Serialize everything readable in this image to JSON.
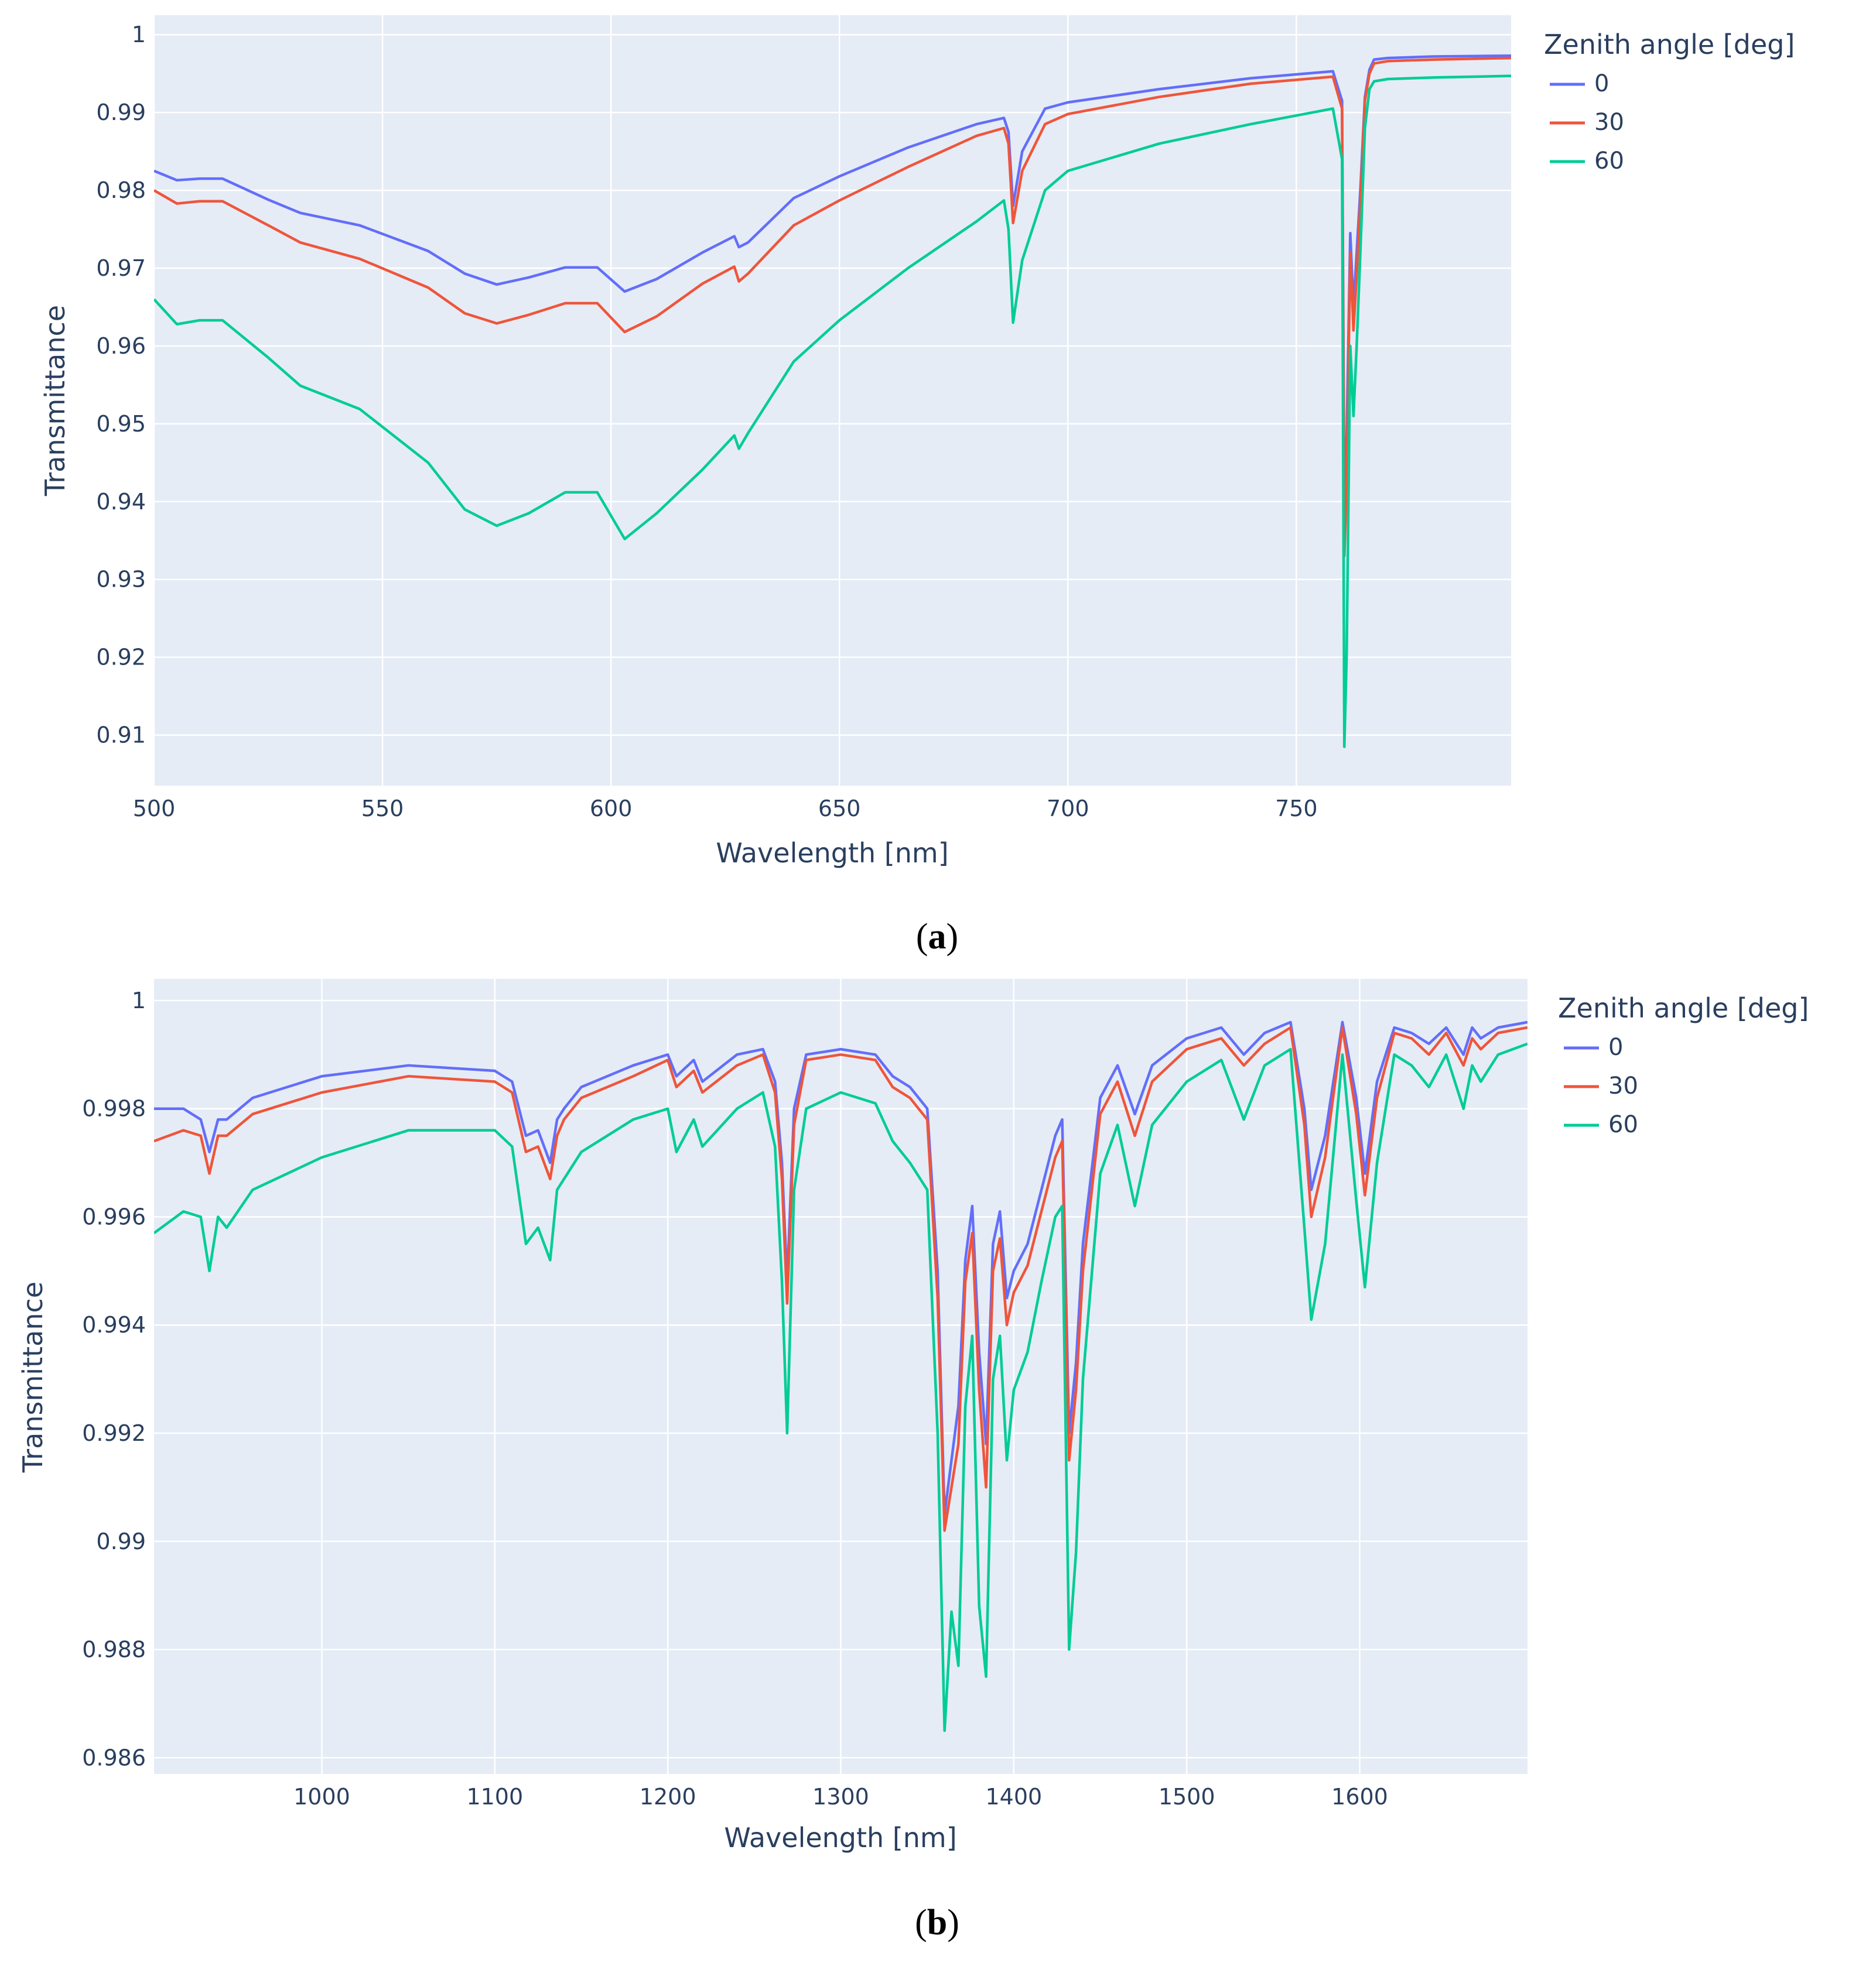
{
  "chart_data": [
    {
      "type": "line",
      "panel_label": "a",
      "xlabel": "Wavelength [nm]",
      "ylabel": "Transmittance",
      "xlim": [
        500,
        797
      ],
      "ylim": [
        0.9035,
        1.0025
      ],
      "x_ticks": [
        500,
        550,
        600,
        650,
        700,
        750
      ],
      "y_ticks": [
        0.91,
        0.92,
        0.93,
        0.94,
        0.95,
        0.96,
        0.97,
        0.98,
        0.99,
        1
      ],
      "y_tick_labels": [
        "0.91",
        "0.92",
        "0.93",
        "0.94",
        "0.95",
        "0.96",
        "0.97",
        "0.98",
        "0.99",
        "1"
      ],
      "grid": true,
      "legend": {
        "title": "Zenith angle [deg]",
        "placement": "top-right, outside"
      },
      "series": [
        {
          "name": "0",
          "color": "#636efa",
          "x": [
            500,
            505,
            510,
            515,
            525,
            532,
            545,
            560,
            568,
            575,
            582,
            590,
            597,
            603,
            610,
            620,
            627,
            628,
            630,
            640,
            650,
            665,
            680,
            686,
            687,
            688,
            690,
            695,
            700,
            720,
            740,
            758,
            760,
            760.5,
            761,
            761.8,
            762.5,
            763.2,
            764,
            765,
            766,
            767,
            770,
            780,
            797
          ],
          "y": [
            0.9825,
            0.9813,
            0.9815,
            0.9815,
            0.9788,
            0.9771,
            0.9755,
            0.9722,
            0.9693,
            0.9679,
            0.9688,
            0.9701,
            0.9701,
            0.967,
            0.9686,
            0.972,
            0.9741,
            0.9727,
            0.9733,
            0.979,
            0.9818,
            0.9855,
            0.9885,
            0.9893,
            0.9875,
            0.978,
            0.985,
            0.9905,
            0.9913,
            0.993,
            0.9944,
            0.9953,
            0.9915,
            0.94,
            0.948,
            0.9745,
            0.965,
            0.972,
            0.98,
            0.992,
            0.9955,
            0.9968,
            0.997,
            0.9972,
            0.9973
          ]
        },
        {
          "name": "30",
          "color": "#ef553b",
          "x": [
            500,
            505,
            510,
            515,
            525,
            532,
            545,
            560,
            568,
            575,
            582,
            590,
            597,
            603,
            610,
            620,
            627,
            628,
            630,
            640,
            650,
            665,
            680,
            686,
            687,
            688,
            690,
            695,
            700,
            720,
            740,
            758,
            760,
            760.5,
            761,
            761.8,
            762.5,
            763.2,
            764,
            765,
            766,
            767,
            770,
            780,
            797
          ],
          "y": [
            0.98,
            0.9783,
            0.9786,
            0.9786,
            0.9755,
            0.9733,
            0.9712,
            0.9675,
            0.9642,
            0.9629,
            0.964,
            0.9655,
            0.9655,
            0.9618,
            0.9638,
            0.968,
            0.9702,
            0.9683,
            0.9693,
            0.9755,
            0.9787,
            0.983,
            0.987,
            0.988,
            0.986,
            0.9758,
            0.9825,
            0.9885,
            0.9898,
            0.992,
            0.9937,
            0.9946,
            0.9905,
            0.933,
            0.942,
            0.972,
            0.962,
            0.969,
            0.9785,
            0.9915,
            0.995,
            0.9963,
            0.9966,
            0.9968,
            0.997
          ]
        },
        {
          "name": "60",
          "color": "#00cc96",
          "x": [
            500,
            505,
            510,
            515,
            525,
            532,
            545,
            560,
            568,
            575,
            582,
            590,
            597,
            603,
            610,
            620,
            627,
            628,
            630,
            640,
            650,
            665,
            680,
            686,
            687,
            688,
            690,
            695,
            700,
            720,
            740,
            758,
            760,
            760.5,
            761,
            761.8,
            762.5,
            763.2,
            764,
            765,
            766,
            767,
            770,
            780,
            797
          ],
          "y": [
            0.966,
            0.9628,
            0.9633,
            0.9633,
            0.9585,
            0.9549,
            0.9519,
            0.945,
            0.939,
            0.9369,
            0.9385,
            0.9412,
            0.9412,
            0.9352,
            0.9385,
            0.9441,
            0.9485,
            0.9468,
            0.9488,
            0.958,
            0.9633,
            0.97,
            0.976,
            0.9787,
            0.975,
            0.963,
            0.971,
            0.98,
            0.9825,
            0.986,
            0.9885,
            0.9905,
            0.984,
            0.9085,
            0.92,
            0.96,
            0.951,
            0.96,
            0.972,
            0.988,
            0.993,
            0.994,
            0.9943,
            0.9945,
            0.9947
          ]
        }
      ]
    },
    {
      "type": "line",
      "panel_label": "b",
      "xlabel": "Wavelength [nm]",
      "ylabel": "Transmittance",
      "xlim": [
        903,
        1697
      ],
      "ylim": [
        0.9857,
        1.0004
      ],
      "x_ticks": [
        1000,
        1100,
        1200,
        1300,
        1400,
        1500,
        1600
      ],
      "y_ticks": [
        0.986,
        0.988,
        0.99,
        0.992,
        0.994,
        0.996,
        0.998,
        1
      ],
      "y_tick_labels": [
        "0.986",
        "0.988",
        "0.99",
        "0.992",
        "0.994",
        "0.996",
        "0.998",
        "1"
      ],
      "grid": true,
      "legend": {
        "title": "Zenith angle [deg]",
        "placement": "top-right, outside"
      },
      "series": [
        {
          "name": "0",
          "color": "#636efa",
          "x": [
            903,
            920,
            930,
            935,
            940,
            945,
            960,
            1000,
            1050,
            1100,
            1110,
            1118,
            1125,
            1132,
            1136,
            1140,
            1150,
            1180,
            1200,
            1205,
            1215,
            1220,
            1240,
            1255,
            1262,
            1266,
            1269,
            1273,
            1280,
            1300,
            1320,
            1330,
            1340,
            1350,
            1356,
            1360,
            1364,
            1368,
            1372,
            1376,
            1380,
            1384,
            1388,
            1392,
            1396,
            1400,
            1408,
            1416,
            1424,
            1428,
            1432,
            1436,
            1440,
            1450,
            1460,
            1470,
            1480,
            1500,
            1520,
            1533,
            1545,
            1560,
            1568,
            1572,
            1580,
            1590,
            1598,
            1603,
            1610,
            1620,
            1630,
            1640,
            1650,
            1660,
            1665,
            1670,
            1680,
            1697
          ],
          "y": [
            0.998,
            0.998,
            0.9978,
            0.9972,
            0.9978,
            0.9978,
            0.9982,
            0.9986,
            0.9988,
            0.9987,
            0.9985,
            0.9975,
            0.9976,
            0.997,
            0.9978,
            0.998,
            0.9984,
            0.9988,
            0.999,
            0.9986,
            0.9989,
            0.9985,
            0.999,
            0.9991,
            0.9985,
            0.997,
            0.9948,
            0.998,
            0.999,
            0.9991,
            0.999,
            0.9986,
            0.9984,
            0.998,
            0.995,
            0.9905,
            0.9915,
            0.9925,
            0.9952,
            0.9962,
            0.9935,
            0.9918,
            0.9955,
            0.9961,
            0.9945,
            0.995,
            0.9955,
            0.9965,
            0.9975,
            0.9978,
            0.992,
            0.9933,
            0.9955,
            0.9982,
            0.9988,
            0.9979,
            0.9988,
            0.9993,
            0.9995,
            0.999,
            0.9994,
            0.9996,
            0.998,
            0.9965,
            0.9975,
            0.9996,
            0.9982,
            0.9968,
            0.9985,
            0.9995,
            0.9994,
            0.9992,
            0.9995,
            0.999,
            0.9995,
            0.9993,
            0.9995,
            0.9996
          ]
        },
        {
          "name": "30",
          "color": "#ef553b",
          "x": [
            903,
            920,
            930,
            935,
            940,
            945,
            960,
            1000,
            1050,
            1100,
            1110,
            1118,
            1125,
            1132,
            1136,
            1140,
            1150,
            1180,
            1200,
            1205,
            1215,
            1220,
            1240,
            1255,
            1262,
            1266,
            1269,
            1273,
            1280,
            1300,
            1320,
            1330,
            1340,
            1350,
            1356,
            1360,
            1364,
            1368,
            1372,
            1376,
            1380,
            1384,
            1388,
            1392,
            1396,
            1400,
            1408,
            1416,
            1424,
            1428,
            1432,
            1436,
            1440,
            1450,
            1460,
            1470,
            1480,
            1500,
            1520,
            1533,
            1545,
            1560,
            1568,
            1572,
            1580,
            1590,
            1598,
            1603,
            1610,
            1620,
            1630,
            1640,
            1650,
            1660,
            1665,
            1670,
            1680,
            1697
          ],
          "y": [
            0.9974,
            0.9976,
            0.9975,
            0.9968,
            0.9975,
            0.9975,
            0.9979,
            0.9983,
            0.9986,
            0.9985,
            0.9983,
            0.9972,
            0.9973,
            0.9967,
            0.9975,
            0.9978,
            0.9982,
            0.9986,
            0.9989,
            0.9984,
            0.9987,
            0.9983,
            0.9988,
            0.999,
            0.9983,
            0.9967,
            0.9944,
            0.9977,
            0.9989,
            0.999,
            0.9989,
            0.9984,
            0.9982,
            0.9978,
            0.9945,
            0.9902,
            0.991,
            0.9918,
            0.9948,
            0.9957,
            0.9928,
            0.991,
            0.995,
            0.9956,
            0.994,
            0.9946,
            0.9951,
            0.9961,
            0.9971,
            0.9974,
            0.9915,
            0.9928,
            0.995,
            0.9979,
            0.9985,
            0.9975,
            0.9985,
            0.9991,
            0.9993,
            0.9988,
            0.9992,
            0.9995,
            0.9977,
            0.996,
            0.9971,
            0.9995,
            0.9979,
            0.9964,
            0.9982,
            0.9994,
            0.9993,
            0.999,
            0.9994,
            0.9988,
            0.9993,
            0.9991,
            0.9994,
            0.9995
          ]
        },
        {
          "name": "60",
          "color": "#00cc96",
          "x": [
            903,
            920,
            930,
            935,
            940,
            945,
            960,
            1000,
            1050,
            1100,
            1110,
            1118,
            1125,
            1132,
            1136,
            1140,
            1150,
            1180,
            1200,
            1205,
            1215,
            1220,
            1240,
            1255,
            1262,
            1266,
            1269,
            1273,
            1280,
            1300,
            1320,
            1330,
            1340,
            1350,
            1356,
            1360,
            1364,
            1368,
            1372,
            1376,
            1380,
            1384,
            1388,
            1392,
            1396,
            1400,
            1408,
            1416,
            1424,
            1428,
            1432,
            1436,
            1440,
            1450,
            1460,
            1470,
            1480,
            1500,
            1520,
            1533,
            1545,
            1560,
            1568,
            1572,
            1580,
            1590,
            1598,
            1603,
            1610,
            1620,
            1630,
            1640,
            1650,
            1660,
            1665,
            1670,
            1680,
            1697
          ],
          "y": [
            0.9957,
            0.9961,
            0.996,
            0.995,
            0.996,
            0.9958,
            0.9965,
            0.9971,
            0.9976,
            0.9976,
            0.9973,
            0.9955,
            0.9958,
            0.9952,
            0.9965,
            0.9967,
            0.9972,
            0.9978,
            0.998,
            0.9972,
            0.9978,
            0.9973,
            0.998,
            0.9983,
            0.9973,
            0.9948,
            0.992,
            0.9965,
            0.998,
            0.9983,
            0.9981,
            0.9974,
            0.997,
            0.9965,
            0.992,
            0.9865,
            0.9887,
            0.9877,
            0.9925,
            0.9938,
            0.9888,
            0.9875,
            0.993,
            0.9938,
            0.9915,
            0.9928,
            0.9935,
            0.9948,
            0.996,
            0.9962,
            0.988,
            0.9898,
            0.993,
            0.9968,
            0.9977,
            0.9962,
            0.9977,
            0.9985,
            0.9989,
            0.9978,
            0.9988,
            0.9991,
            0.9958,
            0.9941,
            0.9955,
            0.999,
            0.9963,
            0.9947,
            0.997,
            0.999,
            0.9988,
            0.9984,
            0.999,
            0.998,
            0.9988,
            0.9985,
            0.999,
            0.9992
          ]
        }
      ]
    }
  ]
}
